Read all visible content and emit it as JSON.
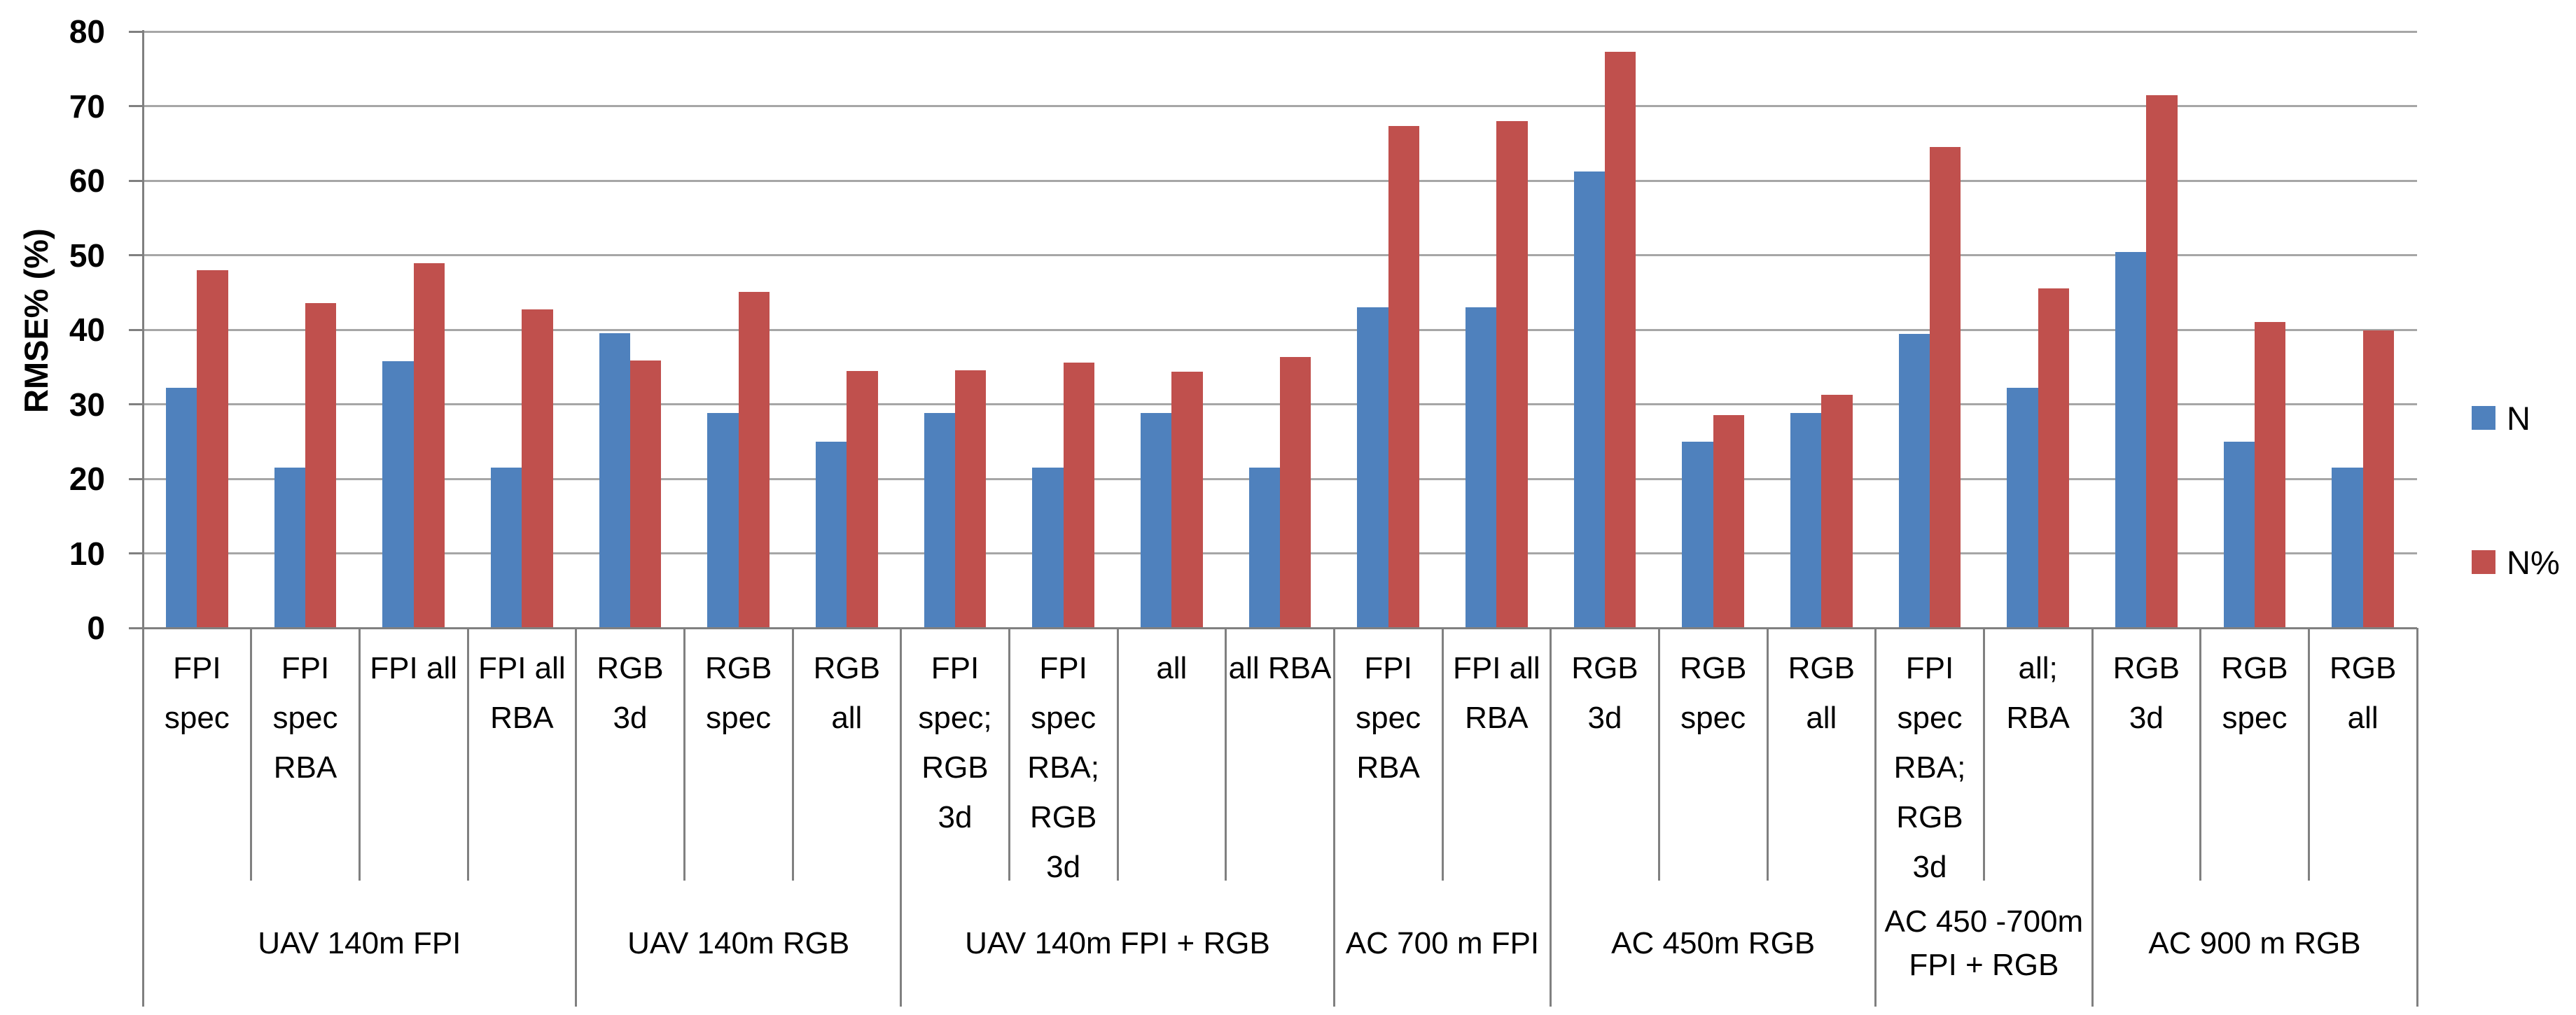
{
  "chart_data": {
    "type": "bar",
    "title": "",
    "xlabel": "",
    "ylabel": "RMSE% (%)",
    "ylim": [
      0,
      80
    ],
    "yticks": [
      0,
      10,
      20,
      30,
      40,
      50,
      60,
      70,
      80
    ],
    "grid": true,
    "legend_position": "right",
    "colors": {
      "N": "#4F81BD",
      "N%": "#C0504D"
    },
    "groups": [
      {
        "label": "UAV 140m FPI",
        "label_lines": [
          "UAV 140m FPI"
        ],
        "categories": [
          {
            "label": "FPI spec",
            "lines": [
              "FPI",
              "spec"
            ]
          },
          {
            "label": "FPI spec RBA",
            "lines": [
              "FPI",
              "spec",
              "RBA"
            ]
          },
          {
            "label": "FPI all",
            "lines": [
              "FPI all"
            ]
          },
          {
            "label": "FPI all RBA",
            "lines": [
              "FPI all",
              "RBA"
            ]
          }
        ]
      },
      {
        "label": "UAV 140m RGB",
        "label_lines": [
          "UAV 140m RGB"
        ],
        "categories": [
          {
            "label": "RGB 3d",
            "lines": [
              "RGB",
              "3d"
            ]
          },
          {
            "label": "RGB spec",
            "lines": [
              "RGB",
              "spec"
            ]
          },
          {
            "label": "RGB all",
            "lines": [
              "RGB",
              "all"
            ]
          }
        ]
      },
      {
        "label": "UAV 140m FPI + RGB",
        "label_lines": [
          "UAV 140m FPI + RGB"
        ],
        "categories": [
          {
            "label": "FPI spec; RGB 3d",
            "lines": [
              "FPI",
              "spec;",
              "RGB",
              "3d"
            ]
          },
          {
            "label": "FPI spec RBA; RGB 3d",
            "lines": [
              "FPI",
              "spec",
              "RBA;",
              "RGB",
              "3d"
            ]
          },
          {
            "label": "all",
            "lines": [
              "all"
            ]
          },
          {
            "label": "all RBA",
            "lines": [
              "all RBA"
            ]
          }
        ]
      },
      {
        "label": "AC 700 m FPI",
        "label_lines": [
          "AC 700 m FPI"
        ],
        "categories": [
          {
            "label": "FPI spec RBA",
            "lines": [
              "FPI",
              "spec",
              "RBA"
            ]
          },
          {
            "label": "FPI all RBA",
            "lines": [
              "FPI all",
              "RBA"
            ]
          }
        ]
      },
      {
        "label": "AC 450m RGB",
        "label_lines": [
          "AC 450m RGB"
        ],
        "categories": [
          {
            "label": "RGB 3d",
            "lines": [
              "RGB",
              "3d"
            ]
          },
          {
            "label": "RGB spec",
            "lines": [
              "RGB",
              "spec"
            ]
          },
          {
            "label": "RGB all",
            "lines": [
              "RGB",
              "all"
            ]
          }
        ]
      },
      {
        "label": "AC 450 -700m FPI + RGB",
        "label_lines": [
          "AC 450 -700m",
          "FPI + RGB"
        ],
        "categories": [
          {
            "label": "FPI spec RBA; RGB 3d",
            "lines": [
              "FPI",
              "spec",
              "RBA;",
              "RGB",
              "3d"
            ]
          },
          {
            "label": "all; RBA",
            "lines": [
              "all;",
              "RBA"
            ]
          }
        ]
      },
      {
        "label": "AC 900 m RGB",
        "label_lines": [
          "AC 900 m RGB"
        ],
        "categories": [
          {
            "label": "RGB 3d",
            "lines": [
              "RGB",
              "3d"
            ]
          },
          {
            "label": "RGB spec",
            "lines": [
              "RGB",
              "spec"
            ]
          },
          {
            "label": "RGB all",
            "lines": [
              "RGB",
              "all"
            ]
          }
        ]
      }
    ],
    "series": [
      {
        "name": "N",
        "color": "#4F81BD",
        "values": [
          32.2,
          21.5,
          35.8,
          21.5,
          39.5,
          28.8,
          25.0,
          28.8,
          21.5,
          28.8,
          21.5,
          43.0,
          43.0,
          61.2,
          25.0,
          28.8,
          39.4,
          32.2,
          50.4,
          25.0,
          21.5
        ]
      },
      {
        "name": "N%",
        "color": "#C0504D",
        "values": [
          48.0,
          43.6,
          48.9,
          42.7,
          35.9,
          45.1,
          34.5,
          34.6,
          35.6,
          34.4,
          36.3,
          67.3,
          68.0,
          77.3,
          28.5,
          31.3,
          64.5,
          45.5,
          71.5,
          41.0,
          39.9
        ]
      }
    ]
  },
  "legend": {
    "items": [
      {
        "label": "N",
        "color": "#4F81BD"
      },
      {
        "label": "N%",
        "color": "#C0504D"
      }
    ]
  }
}
